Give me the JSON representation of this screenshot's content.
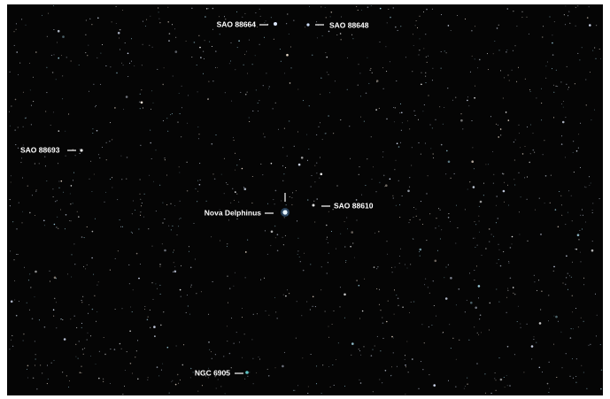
{
  "labels": [
    {
      "text": "SAO 88664"
    },
    {
      "text": "SAO 88648"
    },
    {
      "text": "SAO 88693"
    },
    {
      "text": "Nova Delphinus"
    },
    {
      "text": "SAO 88610"
    },
    {
      "text": "NGC 6905"
    }
  ]
}
